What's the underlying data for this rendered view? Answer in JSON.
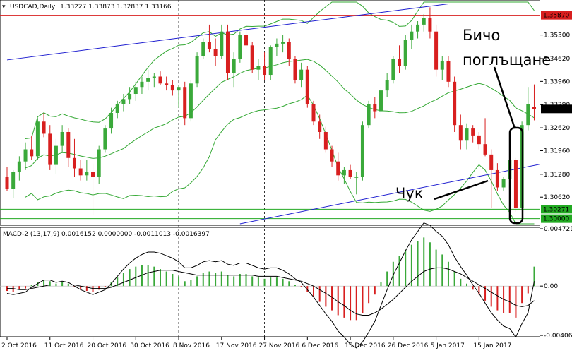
{
  "header": {
    "symbol": "USDCAD,Daily",
    "ohlc": "1.33227 1.33873 1.32837 1.33166"
  },
  "macd_header": "MACD-2 (13,17,9) 0.0016152 0.0000000 -0.0011013 -0.0016397",
  "annotations": {
    "engulfing": [
      "Бичо",
      "поглъщане"
    ],
    "hammer": "Чук"
  },
  "colors": {
    "bull": "#3aa93a",
    "bear": "#d81f1f",
    "band": "#33a833",
    "channel": "#1f1fd0",
    "resistance": "#d81f1f",
    "support": "#22aa22",
    "price_tag": "#000000"
  },
  "chart_data": [
    {
      "type": "candlestick",
      "title": "USDCAD,Daily",
      "ylim": [
        1.2985,
        1.3625
      ],
      "y_ticks": [
        "1.35300",
        "1.34620",
        "1.33960",
        "1.33290",
        "1.32620",
        "1.31960",
        "1.31280",
        "1.30620"
      ],
      "x_ticks": [
        "2 Oct 2016",
        "11 Oct 2016",
        "20 Oct 2016",
        "30 Oct 2016",
        "8 Nov 2016",
        "17 Nov 2016",
        "27 Nov 2016",
        "6 Dec 2016",
        "15 Dec 2016",
        "26 Dec 2016",
        "5 Jan 2017",
        "15 Jan 2017"
      ],
      "x_tick_index": [
        0,
        7,
        14,
        21,
        28,
        35,
        42,
        49,
        56,
        63,
        70,
        77
      ],
      "vgrid_index": [
        14,
        28,
        42,
        70
      ],
      "levels": {
        "resistance": "1.35870",
        "support": "1.30271",
        "bottom": "1.30000",
        "current": "1.33166"
      },
      "candles": [
        [
          1.3121,
          1.315,
          1.308,
          1.3085
        ],
        [
          1.3085,
          1.314,
          1.306,
          1.3135
        ],
        [
          1.3135,
          1.318,
          1.311,
          1.3165
        ],
        [
          1.3165,
          1.322,
          1.314,
          1.32
        ],
        [
          1.32,
          1.324,
          1.317,
          1.318
        ],
        [
          1.318,
          1.329,
          1.317,
          1.328
        ],
        [
          1.328,
          1.3305,
          1.3235,
          1.3245
        ],
        [
          1.3245,
          1.327,
          1.314,
          1.3155
        ],
        [
          1.3155,
          1.323,
          1.313,
          1.321
        ],
        [
          1.321,
          1.327,
          1.319,
          1.325
        ],
        [
          1.325,
          1.326,
          1.315,
          1.3175
        ],
        [
          1.3175,
          1.323,
          1.312,
          1.3145
        ],
        [
          1.3145,
          1.317,
          1.311,
          1.3125
        ],
        [
          1.3125,
          1.317,
          1.311,
          1.3135
        ],
        [
          1.3135,
          1.316,
          1.301,
          1.312
        ],
        [
          1.312,
          1.321,
          1.31,
          1.32
        ],
        [
          1.32,
          1.327,
          1.319,
          1.326
        ],
        [
          1.326,
          1.332,
          1.3245,
          1.3305
        ],
        [
          1.3305,
          1.334,
          1.329,
          1.333
        ],
        [
          1.333,
          1.336,
          1.331,
          1.3345
        ],
        [
          1.3345,
          1.338,
          1.333,
          1.336
        ],
        [
          1.336,
          1.3395,
          1.334,
          1.338
        ],
        [
          1.338,
          1.341,
          1.336,
          1.3395
        ],
        [
          1.3395,
          1.343,
          1.337,
          1.3405
        ],
        [
          1.3405,
          1.342,
          1.338,
          1.341
        ],
        [
          1.341,
          1.3425,
          1.3385,
          1.339
        ],
        [
          1.339,
          1.341,
          1.337,
          1.3385
        ],
        [
          1.3385,
          1.34,
          1.3355,
          1.337
        ],
        [
          1.337,
          1.3385,
          1.332,
          1.338
        ],
        [
          1.338,
          1.3395,
          1.327,
          1.329
        ],
        [
          1.329,
          1.34,
          1.328,
          1.339
        ],
        [
          1.339,
          1.348,
          1.338,
          1.347
        ],
        [
          1.347,
          1.352,
          1.346,
          1.351
        ],
        [
          1.351,
          1.356,
          1.348,
          1.349
        ],
        [
          1.349,
          1.352,
          1.344,
          1.347
        ],
        [
          1.347,
          1.356,
          1.346,
          1.354
        ],
        [
          1.354,
          1.356,
          1.34,
          1.342
        ],
        [
          1.342,
          1.348,
          1.338,
          1.346
        ],
        [
          1.346,
          1.354,
          1.345,
          1.353
        ],
        [
          1.353,
          1.356,
          1.349,
          1.35
        ],
        [
          1.35,
          1.351,
          1.342,
          1.343
        ],
        [
          1.343,
          1.346,
          1.34,
          1.344
        ],
        [
          1.344,
          1.348,
          1.34,
          1.3415
        ],
        [
          1.3415,
          1.35,
          1.34,
          1.3495
        ],
        [
          1.3495,
          1.352,
          1.347,
          1.3505
        ],
        [
          1.3505,
          1.353,
          1.348,
          1.351
        ],
        [
          1.351,
          1.352,
          1.344,
          1.346
        ],
        [
          1.346,
          1.347,
          1.339,
          1.34
        ],
        [
          1.34,
          1.345,
          1.338,
          1.343
        ],
        [
          1.343,
          1.344,
          1.332,
          1.333
        ],
        [
          1.333,
          1.334,
          1.327,
          1.328
        ],
        [
          1.328,
          1.33,
          1.323,
          1.325
        ],
        [
          1.325,
          1.3265,
          1.319,
          1.32
        ],
        [
          1.32,
          1.321,
          1.315,
          1.3165
        ],
        [
          1.3165,
          1.319,
          1.311,
          1.3125
        ],
        [
          1.3125,
          1.315,
          1.31,
          1.314
        ],
        [
          1.314,
          1.3155,
          1.3115,
          1.312
        ],
        [
          1.312,
          1.3135,
          1.307,
          1.312
        ],
        [
          1.312,
          1.328,
          1.311,
          1.327
        ],
        [
          1.327,
          1.334,
          1.326,
          1.333
        ],
        [
          1.333,
          1.335,
          1.329,
          1.331
        ],
        [
          1.331,
          1.338,
          1.33,
          1.337
        ],
        [
          1.337,
          1.342,
          1.335,
          1.34
        ],
        [
          1.34,
          1.347,
          1.339,
          1.346
        ],
        [
          1.346,
          1.35,
          1.342,
          1.344
        ],
        [
          1.344,
          1.353,
          1.343,
          1.3515
        ],
        [
          1.3515,
          1.356,
          1.349,
          1.354
        ],
        [
          1.354,
          1.357,
          1.352,
          1.356
        ],
        [
          1.356,
          1.359,
          1.354,
          1.358
        ],
        [
          1.358,
          1.361,
          1.352,
          1.354
        ],
        [
          1.354,
          1.356,
          1.341,
          1.343
        ],
        [
          1.343,
          1.347,
          1.34,
          1.3455
        ],
        [
          1.3455,
          1.347,
          1.338,
          1.3395
        ],
        [
          1.3395,
          1.341,
          1.325,
          1.327
        ],
        [
          1.327,
          1.33,
          1.32,
          1.3225
        ],
        [
          1.3225,
          1.3275,
          1.32,
          1.326
        ],
        [
          1.326,
          1.327,
          1.322,
          1.324
        ],
        [
          1.324,
          1.325,
          1.32,
          1.3215
        ],
        [
          1.3215,
          1.329,
          1.318,
          1.3185
        ],
        [
          1.3185,
          1.32,
          1.303,
          1.314
        ],
        [
          1.314,
          1.316,
          1.308,
          1.309
        ],
        [
          1.309,
          1.312,
          1.308,
          1.3115
        ],
        [
          1.3115,
          1.319,
          1.309,
          1.317
        ],
        [
          1.317,
          1.3175,
          1.302,
          1.303
        ],
        [
          1.303,
          1.328,
          1.3025,
          1.327
        ],
        [
          1.327,
          1.338,
          1.3255,
          1.333
        ],
        [
          1.33227,
          1.33873,
          1.32837,
          1.33166
        ]
      ],
      "channel": {
        "upper": [
          [
            0,
            1.3458
          ],
          [
            72,
            1.362
          ]
        ],
        "lower": [
          [
            38,
            1.2985
          ],
          [
            110,
            1.3238
          ]
        ]
      }
    },
    {
      "type": "bar+line",
      "title": "MACD-2 (13,17,9)",
      "ylim": [
        -0.00406,
        0.00472
      ],
      "y_ticks": [
        "0.004721",
        "0.00",
        "-0.004064"
      ],
      "histogram": [
        -0.0004,
        -0.0005,
        -0.0003,
        -0.0002,
        0.0001,
        0.0003,
        0.0005,
        0.0004,
        0.0002,
        0.0003,
        0.0002,
        -0.0001,
        -0.0003,
        -0.0004,
        -0.0005,
        -0.0003,
        -0.0001,
        0.0003,
        0.0007,
        0.0011,
        0.0014,
        0.0016,
        0.0017,
        0.0017,
        0.0016,
        0.0014,
        0.0012,
        0.001,
        0.0008,
        0.0004,
        0.0005,
        0.0008,
        0.0011,
        0.0012,
        0.0011,
        0.0012,
        0.0009,
        0.0008,
        0.001,
        0.001,
        0.0008,
        0.0007,
        0.0006,
        0.0007,
        0.0007,
        0.0006,
        0.0004,
        0.0001,
        -0.0001,
        -0.0005,
        -0.0009,
        -0.0013,
        -0.0017,
        -0.002,
        -0.0024,
        -0.0026,
        -0.0028,
        -0.0028,
        -0.0022,
        -0.0014,
        -0.0007,
        0.0003,
        0.0012,
        0.002,
        0.0025,
        0.003,
        0.0034,
        0.0037,
        0.004,
        0.0036,
        0.003,
        0.0026,
        0.002,
        0.0012,
        0.0006,
        0.0002,
        -0.0003,
        -0.0007,
        -0.0012,
        -0.0017,
        -0.002,
        -0.0022,
        -0.0022,
        -0.0026,
        -0.0014,
        -0.0006,
        0.0016
      ],
      "signal": [
        -0.0002,
        -0.0002,
        -0.0003,
        -0.0003,
        -0.0002,
        -0.0001,
        0.0,
        0.0001,
        0.0001,
        0.0001,
        0.0001,
        0.0001,
        0.0,
        -0.0001,
        -0.0002,
        -0.0002,
        -0.0002,
        -0.0001,
        0.0001,
        0.0003,
        0.0005,
        0.0007,
        0.0009,
        0.0011,
        0.0012,
        0.0013,
        0.0013,
        0.0013,
        0.0012,
        0.0011,
        0.001,
        0.0009,
        0.0009,
        0.0009,
        0.0009,
        0.0009,
        0.0009,
        0.0009,
        0.0009,
        0.0009,
        0.0009,
        0.0008,
        0.0008,
        0.0008,
        0.0008,
        0.0007,
        0.0006,
        0.0005,
        0.0004,
        0.0002,
        0.0,
        -0.0003,
        -0.0006,
        -0.0009,
        -0.0013,
        -0.0016,
        -0.002,
        -0.0023,
        -0.0024,
        -0.0024,
        -0.0022,
        -0.0019,
        -0.0015,
        -0.0011,
        -0.0006,
        -0.0001,
        0.0004,
        0.0008,
        0.0012,
        0.0014,
        0.0015,
        0.0015,
        0.0014,
        0.0012,
        0.001,
        0.0007,
        0.0004,
        0.0001,
        -0.0002,
        -0.0005,
        -0.0008,
        -0.0011,
        -0.0013,
        -0.0016,
        -0.0017,
        -0.0016,
        -0.0012
      ],
      "main": [
        -0.0006,
        -0.0007,
        -0.0006,
        -0.0005,
        -0.0001,
        0.0002,
        0.0005,
        0.0005,
        0.0003,
        0.0004,
        0.0003,
        0.0,
        -0.0003,
        -0.0005,
        -0.0007,
        -0.0005,
        -0.0003,
        0.0002,
        0.0008,
        0.0014,
        0.0019,
        0.0023,
        0.0026,
        0.0028,
        0.0028,
        0.0027,
        0.0025,
        0.0023,
        0.002,
        0.0015,
        0.0015,
        0.0017,
        0.002,
        0.0021,
        0.002,
        0.0021,
        0.0018,
        0.0017,
        0.0019,
        0.0019,
        0.0017,
        0.0015,
        0.0014,
        0.0015,
        0.0015,
        0.0013,
        0.001,
        0.0006,
        0.0003,
        -0.0003,
        -0.0009,
        -0.0016,
        -0.0023,
        -0.0029,
        -0.0037,
        -0.0042,
        -0.0048,
        -0.0051,
        -0.0046,
        -0.0038,
        -0.0029,
        -0.0016,
        -0.0003,
        0.0009,
        0.0019,
        0.0029,
        0.0038,
        0.0045,
        0.0052,
        0.005,
        0.0045,
        0.0041,
        0.0034,
        0.0024,
        0.0016,
        0.0009,
        0.0001,
        -0.0006,
        -0.0014,
        -0.0022,
        -0.0028,
        -0.0033,
        -0.0035,
        -0.0042,
        -0.0031,
        -0.0022,
        0.0004
      ]
    }
  ]
}
